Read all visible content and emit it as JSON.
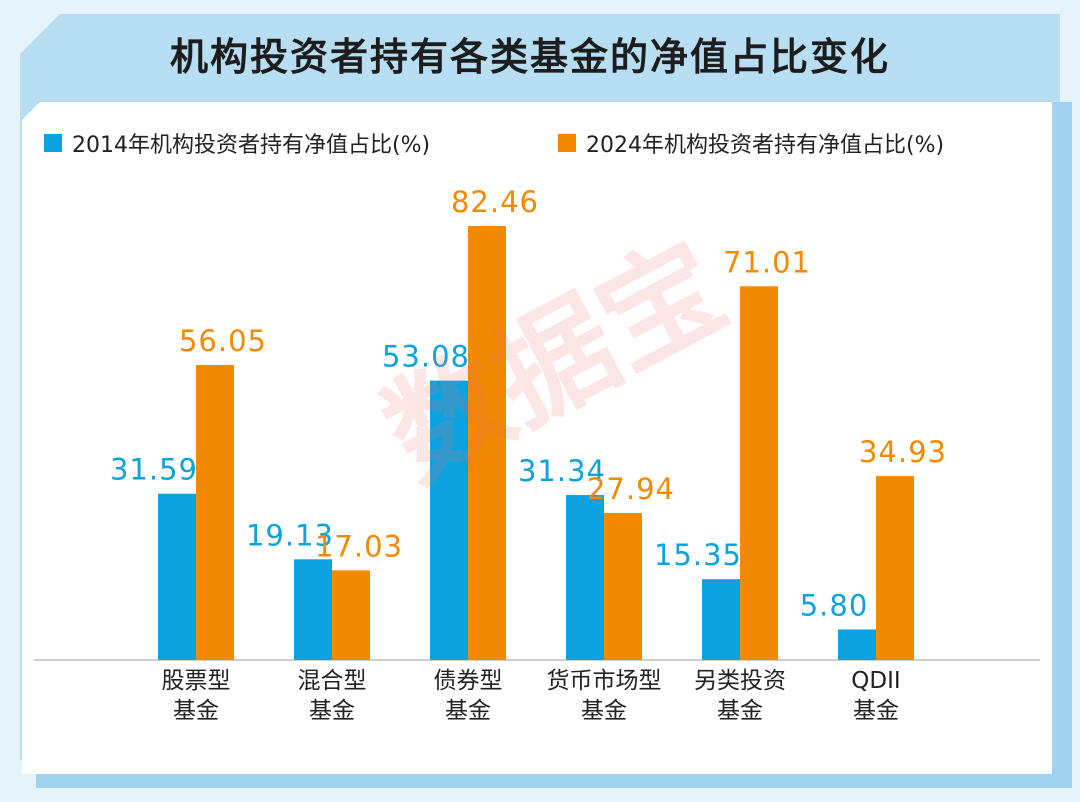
{
  "title": "机构投资者持有各类基金的净值占比变化",
  "watermark": "数据宝",
  "colors": {
    "background": "#e6f3fb",
    "frame": "#b8def4",
    "panel": "#ffffff",
    "series_2014": "#0ca2e0",
    "series_2024": "#f28a00"
  },
  "chart_data": {
    "type": "bar",
    "title": "机构投资者持有各类基金的净值占比变化",
    "categories": [
      [
        "股票型",
        "基金"
      ],
      [
        "混合型",
        "基金"
      ],
      [
        "债券型",
        "基金"
      ],
      [
        "货币市场型",
        "基金"
      ],
      [
        "另类投资",
        "基金"
      ],
      [
        "QDII",
        "基金"
      ]
    ],
    "series": [
      {
        "name": "2014年机构投资者持有净值占比(%)",
        "color": "#0ca2e0",
        "values": [
          31.59,
          19.13,
          53.08,
          31.34,
          15.35,
          5.8
        ],
        "labels": [
          "31.59",
          "19.13",
          "53.08",
          "31.34",
          "15.35",
          "5.80"
        ]
      },
      {
        "name": "2024年机构投资者持有净值占比(%)",
        "color": "#f28a00",
        "values": [
          56.05,
          17.03,
          82.46,
          27.94,
          71.01,
          34.93
        ],
        "labels": [
          "56.05",
          "17.03",
          "82.46",
          "27.94",
          "71.01",
          "34.93"
        ]
      }
    ],
    "ylim": [
      0,
      82.46
    ],
    "grid": false,
    "legend": "top"
  }
}
